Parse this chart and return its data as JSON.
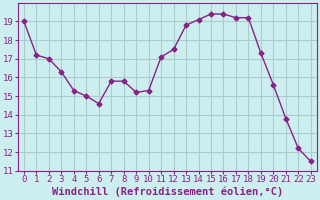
{
  "x": [
    0,
    1,
    2,
    3,
    4,
    5,
    6,
    7,
    8,
    9,
    10,
    11,
    12,
    13,
    14,
    15,
    16,
    17,
    18,
    19,
    20,
    21,
    22,
    23
  ],
  "y": [
    19.0,
    17.2,
    17.0,
    16.3,
    15.3,
    15.0,
    14.6,
    15.8,
    15.8,
    15.2,
    15.3,
    17.1,
    17.5,
    18.8,
    19.1,
    19.4,
    19.4,
    19.2,
    19.2,
    17.3,
    15.6,
    13.8,
    12.2,
    11.5
  ],
  "line_color": "#882288",
  "marker": "D",
  "marker_size": 2.5,
  "bg_color": "#cceeee",
  "grid_color": "#aacccc",
  "xlabel": "Windchill (Refroidissement éolien,°C)",
  "xlabel_color": "#882288",
  "xlabel_fontsize": 7.5,
  "tick_color": "#882288",
  "tick_fontsize": 6.5,
  "ylim": [
    11,
    20
  ],
  "xlim": [
    -0.5,
    23.5
  ],
  "yticks": [
    11,
    12,
    13,
    14,
    15,
    16,
    17,
    18,
    19
  ],
  "xtick_labels": [
    "0",
    "1",
    "2",
    "3",
    "4",
    "5",
    "6",
    "7",
    "8",
    "9",
    "10",
    "11",
    "12",
    "13",
    "14",
    "15",
    "16",
    "17",
    "18",
    "19",
    "20",
    "21",
    "22",
    "23"
  ]
}
